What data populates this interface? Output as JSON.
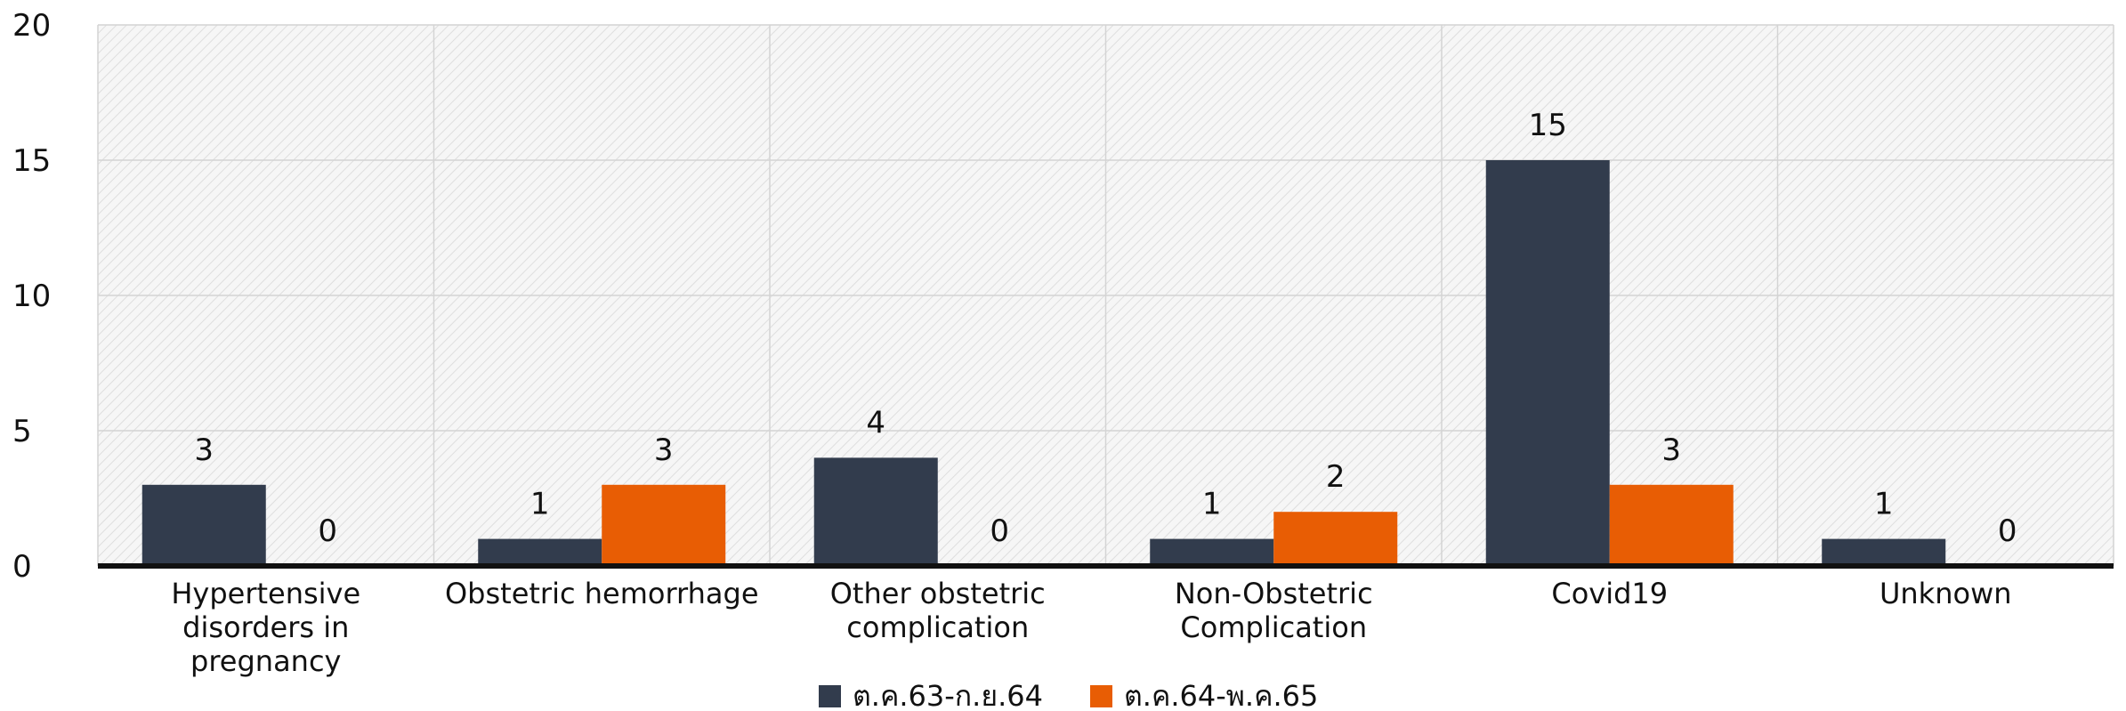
{
  "chart_data": {
    "type": "bar",
    "categories": [
      [
        "Hypertensive",
        "disorders in",
        "pregnancy"
      ],
      [
        "Obstetric hemorrhage"
      ],
      [
        "Other obstetric",
        "complication"
      ],
      [
        "Non-Obstetric",
        "Complication"
      ],
      [
        "Covid19"
      ],
      [
        "Unknown"
      ]
    ],
    "series": [
      {
        "name": "ต.ค.63-ก.ย.64",
        "color": "#323c4d",
        "values": [
          3,
          1,
          4,
          1,
          15,
          1
        ]
      },
      {
        "name": "ต.ค.64-พ.ค.65",
        "color": "#e85d04",
        "values": [
          0,
          3,
          0,
          2,
          3,
          0
        ]
      }
    ],
    "y_ticks": [
      "0",
      "5",
      "10",
      "15",
      "20"
    ],
    "ylim": [
      0,
      20
    ],
    "grid": true,
    "legend_position": "bottom-center",
    "title": "",
    "xlabel": "",
    "ylabel": ""
  }
}
